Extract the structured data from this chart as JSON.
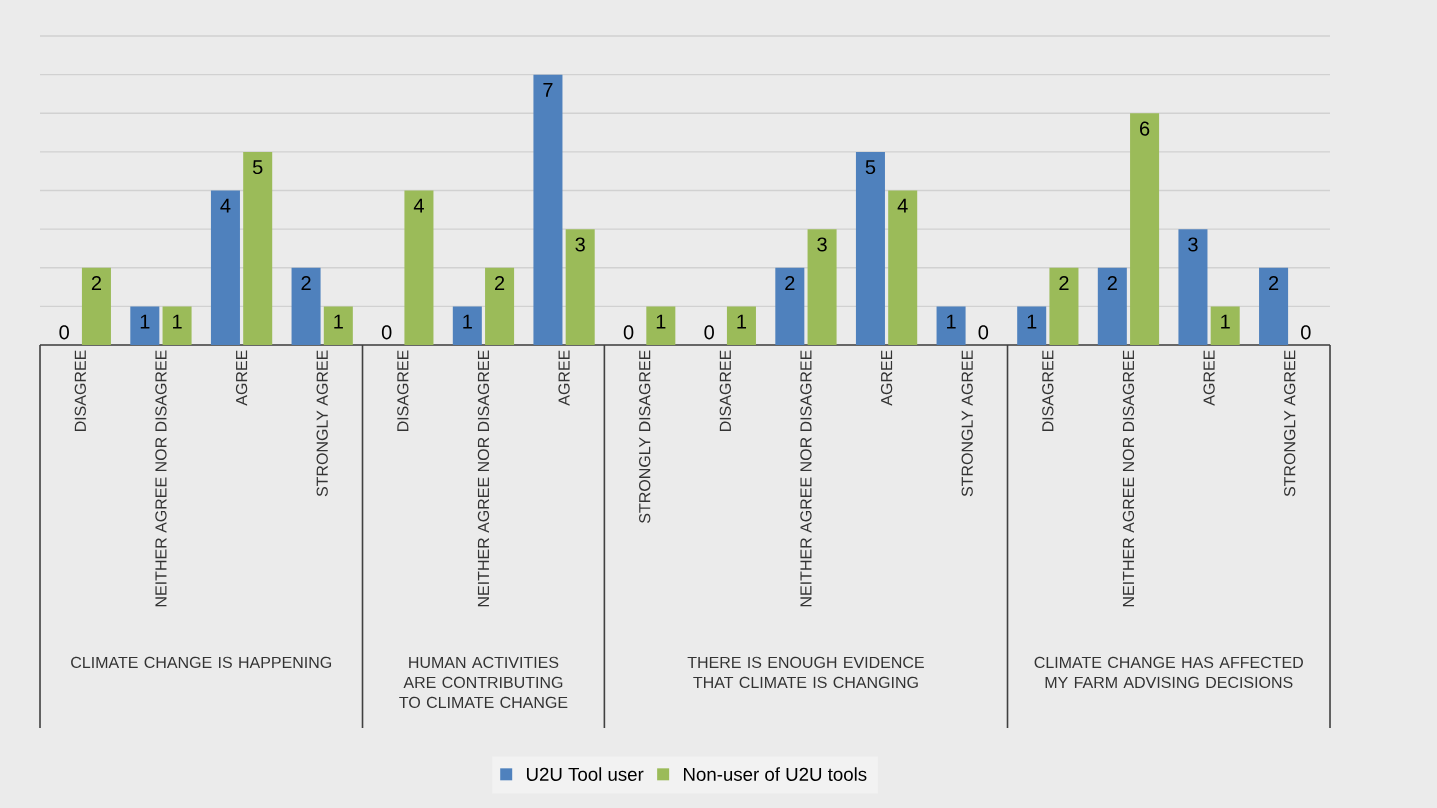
{
  "chart_data": {
    "type": "bar",
    "categories": [
      "DISAGREE",
      "NEITHER AGREE NOR DISAGREE",
      "AGREE",
      "STRONGLY AGREE",
      "DISAGREE",
      "NEITHER AGREE NOR DISAGREE",
      "AGREE",
      "STRONGLY DISAGREE",
      "DISAGREE",
      "NEITHER AGREE NOR DISAGREE",
      "AGREE",
      "STRONGLY AGREE",
      "DISAGREE",
      "NEITHER AGREE NOR DISAGREE",
      "AGREE",
      "STRONGLY AGREE"
    ],
    "series": [
      {
        "name": "U2U Tool user",
        "color": "#4f81bd",
        "values": [
          0,
          1,
          4,
          2,
          0,
          1,
          7,
          0,
          0,
          2,
          5,
          1,
          1,
          2,
          3,
          2
        ]
      },
      {
        "name": "Non-user of U2U tools",
        "color": "#9bbb59",
        "values": [
          2,
          1,
          5,
          1,
          4,
          2,
          3,
          1,
          1,
          3,
          4,
          0,
          2,
          6,
          1,
          0
        ]
      }
    ],
    "annotations": [
      "CLIMATE CHANGE IS HAPPENING",
      "HUMAN ACTIVITIES ARE CONTRIBUTING TO CLIMATE CHANGE",
      "THERE IS ENOUGH EVIDENCE THAT CLIMATE IS CHANGING",
      "CLIMATE CHANGE HAS AFFECTED MY FARM ADVISING DECISIONS"
    ],
    "ylim": [
      0,
      8
    ],
    "yticks": [
      {
        "value": 0,
        "label": null
      },
      {
        "value": 1,
        "label": null
      },
      {
        "value": 2,
        "label": null
      },
      {
        "value": 3,
        "label": null
      },
      {
        "value": 4,
        "label": null
      },
      {
        "value": 5,
        "label": null
      },
      {
        "value": 6,
        "label": null
      },
      {
        "value": 7,
        "label": null
      },
      {
        "value": 8,
        "label": null
      }
    ],
    "tick_labels": "x",
    "grid": "y",
    "data_labels": true,
    "legend": "bottom"
  }
}
